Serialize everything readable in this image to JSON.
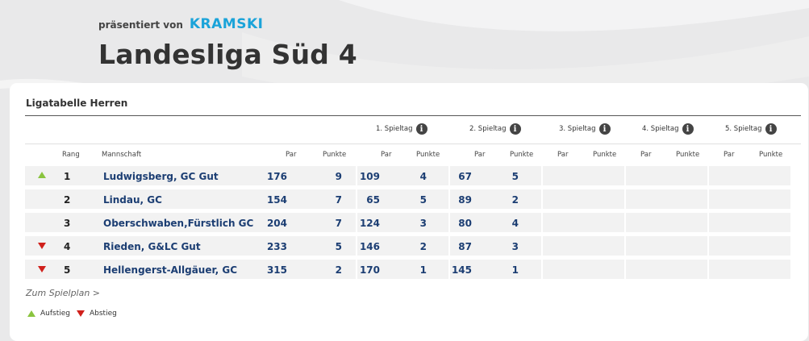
{
  "header": {
    "presented_by": "präsentiert von",
    "sponsor": "KRAMSKI",
    "title": "Landesliga Süd 4"
  },
  "table": {
    "title": "Ligatabelle Herren",
    "groups": [
      "1. Spieltag",
      "2. Spieltag",
      "3. Spieltag",
      "4. Spieltag",
      "5. Spieltag"
    ],
    "sub_headers": {
      "rank": "Rang",
      "team": "Mannschaft",
      "par": "Par",
      "points": "Punkte"
    },
    "rows": [
      {
        "trend": "up",
        "rank": "1",
        "team": "Ludwigsberg, GC Gut",
        "par": "176",
        "points": "9",
        "d1_par": "109",
        "d1_points": "4",
        "d2_par": "67",
        "d2_points": "5"
      },
      {
        "trend": "",
        "rank": "2",
        "team": "Lindau, GC",
        "par": "154",
        "points": "7",
        "d1_par": "65",
        "d1_points": "5",
        "d2_par": "89",
        "d2_points": "2"
      },
      {
        "trend": "",
        "rank": "3",
        "team": "Oberschwaben,Fürstlich GC",
        "par": "204",
        "points": "7",
        "d1_par": "124",
        "d1_points": "3",
        "d2_par": "80",
        "d2_points": "4"
      },
      {
        "trend": "down",
        "rank": "4",
        "team": "Rieden, G&LC Gut",
        "par": "233",
        "points": "5",
        "d1_par": "146",
        "d1_points": "2",
        "d2_par": "87",
        "d2_points": "3"
      },
      {
        "trend": "down",
        "rank": "5",
        "team": "Hellengerst-Allgäuer, GC",
        "par": "315",
        "points": "2",
        "d1_par": "170",
        "d1_points": "1",
        "d2_par": "145",
        "d2_points": "1"
      }
    ]
  },
  "link_schedule": "Zum Spielplan >",
  "legend": {
    "up_label": "Aufstieg",
    "down_label": "Abstieg"
  },
  "colors": {
    "accent": "#1aa3d9",
    "up": "#8ac43f",
    "down": "#d0201b",
    "link": "#1c3e73"
  }
}
